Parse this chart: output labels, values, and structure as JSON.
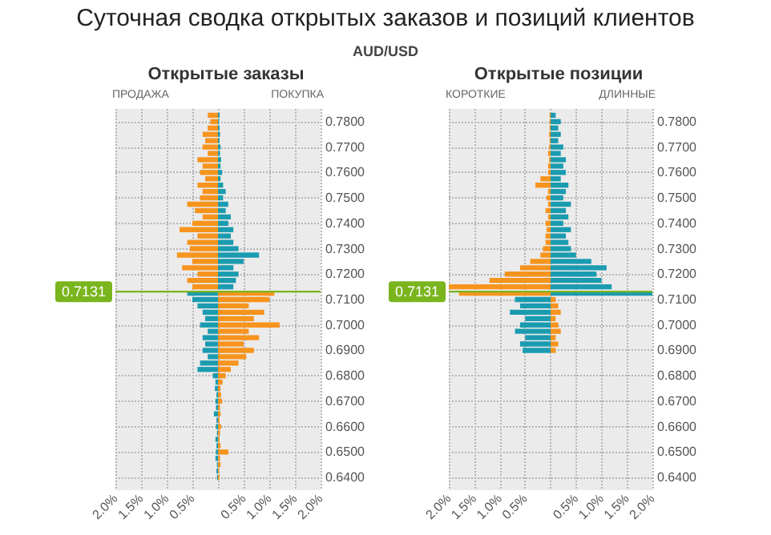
{
  "chart_data": [
    {
      "type": "bar",
      "orientation": "horizontal",
      "stacked": true,
      "title": "Открытые заказы",
      "annotations": [
        "Суточная сводка открытых заказов и позиций клиентов",
        "AUD/USD",
        "ПРОДАЖА",
        "ПОКУПКА"
      ],
      "x": [
        0.64,
        0.6425,
        0.645,
        0.6475,
        0.65,
        0.6525,
        0.655,
        0.6575,
        0.66,
        0.6625,
        0.665,
        0.6675,
        0.67,
        0.6725,
        0.675,
        0.6775,
        0.68,
        0.6825,
        0.685,
        0.6875,
        0.69,
        0.6925,
        0.695,
        0.6975,
        0.7,
        0.7025,
        0.705,
        0.7075,
        0.71,
        0.7125,
        0.715,
        0.7175,
        0.72,
        0.7225,
        0.725,
        0.7275,
        0.73,
        0.7325,
        0.735,
        0.7375,
        0.74,
        0.7425,
        0.745,
        0.7475,
        0.75,
        0.7525,
        0.755,
        0.7575,
        0.76,
        0.7625,
        0.765,
        0.7675,
        0.77,
        0.7725,
        0.775,
        0.7775,
        0.78,
        0.7825
      ],
      "series": [
        {
          "color": "#f7941d",
          "values": [
            0.03,
            0.02,
            0.05,
            0.04,
            0.2,
            0.05,
            0.03,
            0.04,
            0.06,
            0.03,
            0.05,
            0.04,
            0.08,
            0.06,
            0.05,
            0.09,
            0.15,
            0.25,
            0.4,
            0.55,
            0.7,
            0.5,
            0.8,
            0.6,
            1.2,
            0.7,
            0.9,
            0.6,
            1.0,
            1.1,
            -0.5,
            -0.6,
            -0.4,
            -0.7,
            -0.5,
            -0.8,
            -0.55,
            -0.6,
            -0.4,
            -0.75,
            -0.5,
            -0.3,
            -0.45,
            -0.6,
            -0.35,
            -0.3,
            -0.4,
            -0.25,
            -0.35,
            -0.3,
            -0.4,
            -0.2,
            -0.3,
            -0.25,
            -0.3,
            -0.2,
            -0.15,
            -0.2
          ]
        },
        {
          "color": "#1a9bb0",
          "values": [
            -0.02,
            -0.03,
            -0.02,
            -0.05,
            -0.04,
            -0.03,
            -0.05,
            -0.02,
            -0.04,
            -0.03,
            -0.08,
            -0.04,
            -0.05,
            -0.03,
            -0.06,
            -0.05,
            -0.1,
            -0.4,
            -0.35,
            -0.2,
            -0.3,
            -0.25,
            -0.3,
            -0.2,
            -0.35,
            -0.25,
            -0.3,
            -0.4,
            -0.5,
            -0.6,
            0.3,
            0.35,
            0.4,
            0.3,
            0.5,
            0.8,
            0.4,
            0.3,
            0.25,
            0.3,
            0.2,
            0.25,
            0.15,
            0.2,
            0.1,
            0.15,
            0.1,
            0.05,
            0.08,
            0.05,
            0.06,
            0.04,
            0.05,
            0.03,
            0.04,
            0.03,
            0.02,
            0.03
          ]
        }
      ],
      "xlim": [
        -2,
        2
      ],
      "xticks": [
        {
          "value": -2,
          "label": "2.0%"
        },
        {
          "value": -1.5,
          "label": "1.5%"
        },
        {
          "value": -1,
          "label": "1.0%"
        },
        {
          "value": -0.5,
          "label": "0.5%"
        },
        {
          "value": 0,
          "label": null
        },
        {
          "value": 0.5,
          "label": "0.5%"
        },
        {
          "value": 1,
          "label": "1.0%"
        },
        {
          "value": 1.5,
          "label": "1.5%"
        },
        {
          "value": 2,
          "label": "2.0%"
        }
      ],
      "ylim": [
        0.635,
        0.785
      ],
      "yticks": [
        {
          "value": 0.64,
          "label": "0.6400"
        },
        {
          "value": 0.65,
          "label": "0.6500"
        },
        {
          "value": 0.66,
          "label": "0.6600"
        },
        {
          "value": 0.67,
          "label": "0.6700"
        },
        {
          "value": 0.68,
          "label": "0.6800"
        },
        {
          "value": 0.69,
          "label": "0.6900"
        },
        {
          "value": 0.7,
          "label": "0.7000"
        },
        {
          "value": 0.71,
          "label": "0.7100"
        },
        {
          "value": 0.72,
          "label": "0.7200"
        },
        {
          "value": 0.73,
          "label": "0.7300"
        },
        {
          "value": 0.74,
          "label": "0.7400"
        },
        {
          "value": 0.75,
          "label": "0.7500"
        },
        {
          "value": 0.76,
          "label": "0.7600"
        },
        {
          "value": 0.77,
          "label": "0.7700"
        },
        {
          "value": 0.78,
          "label": "0.7800"
        }
      ],
      "grid": true,
      "ref_lines": [
        {
          "axis": "y",
          "value": 0.7131,
          "label": "0.7131",
          "color": "#7ab51d"
        }
      ]
    },
    {
      "type": "bar",
      "orientation": "horizontal",
      "stacked": true,
      "title": "Открытые позиции",
      "annotations": [
        "КОРОТКИЕ",
        "ДЛИННЫЕ"
      ],
      "x": [
        0.69,
        0.6925,
        0.695,
        0.6975,
        0.7,
        0.7025,
        0.705,
        0.7075,
        0.71,
        0.7125,
        0.715,
        0.7175,
        0.72,
        0.7225,
        0.725,
        0.7275,
        0.73,
        0.7325,
        0.735,
        0.7375,
        0.74,
        0.7425,
        0.745,
        0.7475,
        0.75,
        0.7525,
        0.755,
        0.7575,
        0.76,
        0.7625,
        0.765,
        0.7675,
        0.77,
        0.7725,
        0.775,
        0.7775,
        0.78,
        0.7825
      ],
      "series": [
        {
          "color": "#f7941d",
          "values": [
            0.1,
            0.15,
            0.1,
            0.2,
            0.15,
            0.1,
            0.2,
            0.15,
            0.1,
            -1.8,
            -2.0,
            -1.2,
            -0.9,
            -0.6,
            -0.4,
            -0.2,
            -0.15,
            -0.1,
            -0.1,
            -0.08,
            -0.1,
            -0.05,
            -0.1,
            -0.05,
            -0.08,
            -0.05,
            -0.3,
            -0.2,
            -0.05,
            -0.05,
            -0.03,
            -0.05,
            -0.03,
            -0.02,
            -0.03,
            -0.02,
            -0.02,
            -0.02
          ]
        },
        {
          "color": "#1a9bb0",
          "values": [
            -0.55,
            -0.6,
            -0.5,
            -0.7,
            -0.6,
            -0.5,
            -0.8,
            -0.6,
            -0.7,
            2.0,
            1.2,
            1.0,
            0.9,
            1.1,
            0.8,
            0.5,
            0.4,
            0.35,
            0.3,
            0.4,
            0.25,
            0.35,
            0.3,
            0.4,
            0.25,
            0.3,
            0.35,
            0.2,
            0.3,
            0.25,
            0.3,
            0.2,
            0.25,
            0.15,
            0.2,
            0.15,
            0.2,
            0.1
          ]
        }
      ],
      "xlim": [
        -2,
        2
      ],
      "xticks": [
        {
          "value": -2,
          "label": "2.0%"
        },
        {
          "value": -1.5,
          "label": "1.5%"
        },
        {
          "value": -1,
          "label": "1.0%"
        },
        {
          "value": -0.5,
          "label": "0.5%"
        },
        {
          "value": 0,
          "label": null
        },
        {
          "value": 0.5,
          "label": "0.5%"
        },
        {
          "value": 1,
          "label": "1.0%"
        },
        {
          "value": 1.5,
          "label": "1.5%"
        },
        {
          "value": 2,
          "label": "2.0%"
        }
      ],
      "ylim": [
        0.635,
        0.785
      ],
      "yticks": [
        {
          "value": 0.64,
          "label": "0.6400"
        },
        {
          "value": 0.65,
          "label": "0.6500"
        },
        {
          "value": 0.66,
          "label": "0.6600"
        },
        {
          "value": 0.67,
          "label": "0.6700"
        },
        {
          "value": 0.68,
          "label": "0.6800"
        },
        {
          "value": 0.69,
          "label": "0.6900"
        },
        {
          "value": 0.7,
          "label": "0.7000"
        },
        {
          "value": 0.71,
          "label": "0.7100"
        },
        {
          "value": 0.72,
          "label": "0.7200"
        },
        {
          "value": 0.73,
          "label": "0.7300"
        },
        {
          "value": 0.74,
          "label": "0.7400"
        },
        {
          "value": 0.75,
          "label": "0.7500"
        },
        {
          "value": 0.76,
          "label": "0.7600"
        },
        {
          "value": 0.77,
          "label": "0.7700"
        },
        {
          "value": 0.78,
          "label": "0.7800"
        }
      ],
      "grid": true,
      "ref_lines": [
        {
          "axis": "y",
          "value": 0.7131,
          "label": "0.7131",
          "color": "#7ab51d"
        }
      ]
    }
  ]
}
